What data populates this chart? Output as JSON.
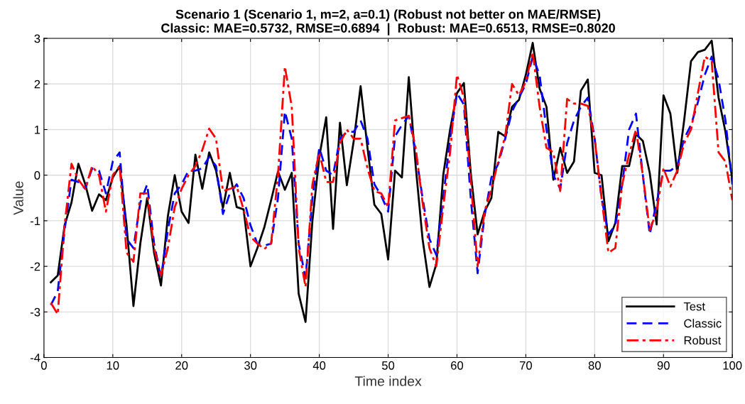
{
  "chart_data": {
    "type": "line",
    "title": "Scenario 1 (Scenario 1, m=2, a=0.1) (Robust not better on MAE/RMSE)\nClassic: MAE=0.5732, RMSE=0.6894  |  Robust: MAE=0.6513, RMSE=0.8020",
    "xlabel": "Time index",
    "ylabel": "Value",
    "x": [
      1,
      2,
      3,
      4,
      5,
      6,
      7,
      8,
      9,
      10,
      11,
      12,
      13,
      14,
      15,
      16,
      17,
      18,
      19,
      20,
      21,
      22,
      23,
      24,
      25,
      26,
      27,
      28,
      29,
      30,
      31,
      32,
      33,
      34,
      35,
      36,
      37,
      38,
      39,
      40,
      41,
      42,
      43,
      44,
      45,
      46,
      47,
      48,
      49,
      50,
      51,
      52,
      53,
      54,
      55,
      56,
      57,
      58,
      59,
      60,
      61,
      62,
      63,
      64,
      65,
      66,
      67,
      68,
      69,
      70,
      71,
      72,
      73,
      74,
      75,
      76,
      77,
      78,
      79,
      80,
      81,
      82,
      83,
      84,
      85,
      86,
      87,
      88,
      89,
      90,
      91,
      92,
      93,
      94,
      95,
      96,
      97,
      98,
      99,
      100
    ],
    "series": [
      {
        "name": "Test",
        "color": "#000000",
        "line_style": "solid",
        "values": [
          -2.35,
          -2.2,
          -1.1,
          -0.6,
          0.25,
          -0.2,
          -0.78,
          -0.42,
          -0.55,
          -0.05,
          0.2,
          -1.1,
          -2.87,
          -1.5,
          -0.5,
          -1.7,
          -2.42,
          -0.9,
          0.0,
          -0.8,
          -1.05,
          0.45,
          -0.3,
          0.5,
          0.1,
          -0.72,
          0.05,
          -0.7,
          -0.75,
          -2.0,
          -1.6,
          -1.15,
          -0.55,
          0.08,
          -0.32,
          0.05,
          -2.6,
          -3.22,
          -1.0,
          0.4,
          1.27,
          -1.18,
          1.15,
          -0.22,
          0.75,
          1.95,
          0.6,
          -0.65,
          -0.85,
          -1.85,
          0.1,
          -0.05,
          2.15,
          0.2,
          -1.4,
          -2.45,
          -1.95,
          0.0,
          1.0,
          1.8,
          2.02,
          0.05,
          -1.3,
          -0.8,
          -0.5,
          0.95,
          0.85,
          1.5,
          1.65,
          2.2,
          2.9,
          1.9,
          1.5,
          -0.1,
          0.6,
          0.05,
          0.3,
          1.85,
          2.1,
          0.05,
          0.0,
          -1.45,
          -1.05,
          0.2,
          0.2,
          0.9,
          0.75,
          0.05,
          -1.08,
          1.75,
          1.35,
          0.05,
          1.2,
          2.5,
          2.7,
          2.75,
          2.95,
          1.7,
          0.95,
          -0.1
        ]
      },
      {
        "name": "Classic",
        "color": "#0000ff",
        "line_style": "dashed",
        "values": [
          -2.85,
          -2.55,
          -1.2,
          -0.1,
          -0.15,
          -0.3,
          0.15,
          0.1,
          -0.4,
          0.3,
          0.5,
          -1.4,
          -1.6,
          -0.6,
          -0.2,
          -1.5,
          -2.25,
          -1.2,
          -0.4,
          -0.2,
          0.1,
          0.1,
          0.15,
          0.4,
          0.2,
          -0.85,
          -0.4,
          -0.2,
          -0.5,
          -1.1,
          -1.5,
          -1.55,
          -1.5,
          -0.5,
          1.4,
          0.8,
          -1.5,
          -2.25,
          -0.5,
          0.6,
          0.1,
          0.0,
          0.8,
          0.95,
          0.95,
          1.2,
          0.8,
          -0.2,
          -0.45,
          -0.8,
          0.85,
          1.1,
          1.3,
          0.5,
          -0.5,
          -1.4,
          -1.75,
          -0.5,
          0.8,
          1.8,
          1.55,
          -0.5,
          -2.15,
          -0.9,
          -0.05,
          0.25,
          0.8,
          1.4,
          1.7,
          2.0,
          2.6,
          2.2,
          1.0,
          0.0,
          -0.3,
          0.7,
          1.2,
          1.5,
          1.7,
          0.8,
          -0.5,
          -1.3,
          -1.1,
          -0.2,
          1.0,
          1.35,
          0.0,
          -1.3,
          -0.6,
          0.1,
          0.1,
          0.2,
          0.8,
          1.1,
          1.6,
          2.2,
          2.6,
          2.1,
          1.2,
          -0.2
        ]
      },
      {
        "name": "Robust",
        "color": "#ff0000",
        "line_style": "dashdot",
        "values": [
          -2.8,
          -3.05,
          -1.1,
          0.25,
          -0.1,
          -0.3,
          0.2,
          0.0,
          -0.8,
          0.0,
          0.2,
          -1.7,
          -1.9,
          -0.4,
          -0.4,
          -1.6,
          -2.2,
          -1.6,
          -0.7,
          -0.3,
          0.0,
          0.2,
          0.55,
          1.02,
          0.8,
          -0.35,
          -0.3,
          -0.25,
          -0.75,
          -1.35,
          -1.5,
          -1.62,
          -1.5,
          0.0,
          2.38,
          1.5,
          -1.6,
          -2.45,
          -0.2,
          0.5,
          -0.15,
          -0.15,
          0.7,
          1.0,
          0.8,
          0.8,
          0.15,
          -0.35,
          -0.4,
          -0.7,
          1.2,
          1.25,
          1.3,
          0.6,
          -0.6,
          -1.6,
          -2.0,
          -0.7,
          0.5,
          2.2,
          1.7,
          -0.1,
          -2.0,
          -0.8,
          -0.3,
          0.3,
          0.85,
          2.0,
          1.75,
          2.05,
          2.7,
          1.5,
          0.6,
          0.5,
          -0.35,
          1.67,
          1.57,
          1.57,
          1.52,
          0.8,
          -0.5,
          -1.7,
          -1.6,
          -0.2,
          0.45,
          1.0,
          0.0,
          -1.2,
          -0.8,
          0.15,
          -0.25,
          0.1,
          0.7,
          1.0,
          1.8,
          2.6,
          2.5,
          0.5,
          0.3,
          -0.55
        ]
      }
    ],
    "xlim": [
      0,
      100
    ],
    "xticks": [
      0,
      10,
      20,
      30,
      40,
      50,
      60,
      70,
      80,
      90,
      100
    ],
    "ylim": [
      -4,
      3
    ],
    "yticks": [
      -4,
      -3,
      -2,
      -1,
      0,
      1,
      2,
      3
    ],
    "grid": true,
    "legend": "bottom right",
    "marker": "none"
  }
}
